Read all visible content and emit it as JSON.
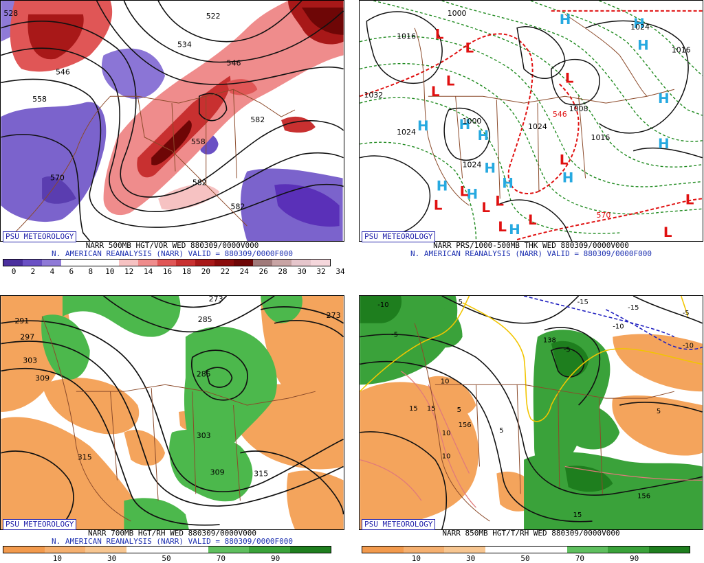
{
  "badge": "PSU METEOROLOGY",
  "panels": [
    {
      "caption_line1": "NARR 500MB HGT/VOR WED 880309/0000V000",
      "caption_line2": "N. AMERICAN REANALYSIS (NARR) VALID = 880309/0000F000",
      "colorbar": {
        "colors": [
          "#4b2f9e",
          "#6a50c4",
          "#8f7ad7",
          "#ffffff",
          "#ffffff",
          "#ffffff",
          "#f6c2c2",
          "#ef8c8c",
          "#e05656",
          "#c83030",
          "#a81818",
          "#8a0b0b",
          "#6e0606",
          "#a07a7a",
          "#c8a4a4",
          "#e6c6cc",
          "#f5d7dc"
        ],
        "ticks": [
          "0",
          "2",
          "4",
          "6",
          "8",
          "10",
          "12",
          "14",
          "16",
          "18",
          "20",
          "22",
          "24",
          "26",
          "28",
          "30",
          "32",
          "34"
        ]
      },
      "contour_labels": [
        "522",
        "534",
        "546",
        "558",
        "570",
        "582",
        "582",
        "546",
        "558",
        "582",
        "528"
      ]
    },
    {
      "caption_line1": "NARR PRS/1000-500MB THK WED 880309/0000V000",
      "caption_line2": "N. AMERICAN REANALYSIS (NARR) VALID = 880309/0000F000",
      "contour_labels": [
        "1000",
        "1016",
        "1032",
        "1024",
        "1024",
        "1024",
        "1008",
        "1016",
        "1024",
        "1016",
        "546",
        "570",
        "1000"
      ],
      "high_symbol": "H",
      "low_symbol": "L"
    },
    {
      "caption_line1": "NARR 700MB HGT/RH WED 880309/0000V000",
      "caption_line2": "N. AMERICAN REANALYSIS (NARR) VALID = 880309/0000F000",
      "colorbar": {
        "colors": [
          "#f29a4d",
          "#f5b070",
          "#f7c691",
          "#ffffff",
          "#ffffff",
          "#5fbf5f",
          "#3aa23a",
          "#1e7e1e"
        ],
        "ticks": [
          "10",
          "30",
          "50",
          "70",
          "90"
        ]
      },
      "contour_labels": [
        "273",
        "291",
        "297",
        "303",
        "309",
        "285",
        "315",
        "273",
        "285",
        "303",
        "309",
        "315"
      ]
    },
    {
      "caption_line1": "NARR 850MB HGT/T/RH WED 880309/0000V000",
      "colorbar": {
        "colors": [
          "#f29a4d",
          "#f5b070",
          "#f7c691",
          "#ffffff",
          "#ffffff",
          "#5fbf5f",
          "#3aa23a",
          "#1e7e1e"
        ],
        "ticks": [
          "10",
          "30",
          "50",
          "70",
          "90"
        ]
      },
      "contour_labels": [
        "-10",
        "-15",
        "-15",
        "-10",
        "-5",
        "-5",
        "-10",
        "5",
        "138",
        "15",
        "5",
        "10",
        "10",
        "10",
        "156",
        "5",
        "15",
        "-5",
        "5",
        "15",
        "156"
      ]
    }
  ]
}
